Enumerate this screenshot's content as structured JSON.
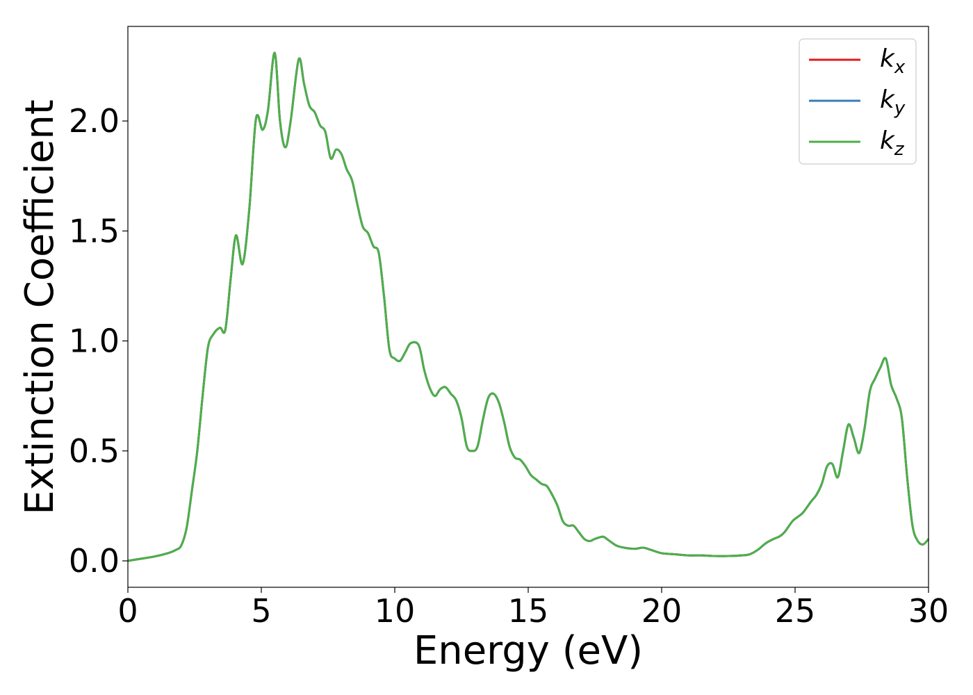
{
  "chart_data": {
    "type": "line",
    "xlabel": "Energy (eV)",
    "ylabel": "Extinction Coefficient",
    "xlim": [
      0,
      30
    ],
    "ylim": [
      -0.12,
      2.43
    ],
    "xticks": [
      0,
      5,
      10,
      15,
      20,
      25,
      30
    ],
    "xtick_labels": [
      "0",
      "5",
      "10",
      "15",
      "20",
      "25",
      "30"
    ],
    "yticks": [
      0.0,
      0.5,
      1.0,
      1.5,
      2.0
    ],
    "ytick_labels": [
      "0.0",
      "0.5",
      "1.0",
      "1.5",
      "2.0"
    ],
    "grid": false,
    "legend_position": "top-right",
    "x": [
      0,
      0.5,
      1.0,
      1.5,
      1.8,
      2.0,
      2.2,
      2.4,
      2.6,
      2.8,
      3.0,
      3.2,
      3.45,
      3.65,
      3.85,
      4.05,
      4.3,
      4.55,
      4.8,
      5.05,
      5.25,
      5.5,
      5.7,
      5.9,
      6.1,
      6.4,
      6.6,
      6.8,
      7.0,
      7.2,
      7.4,
      7.6,
      7.8,
      8.0,
      8.2,
      8.4,
      8.6,
      8.8,
      9.0,
      9.2,
      9.4,
      9.6,
      9.8,
      10.0,
      10.2,
      10.4,
      10.6,
      10.9,
      11.1,
      11.3,
      11.5,
      11.7,
      11.9,
      12.1,
      12.3,
      12.5,
      12.7,
      12.9,
      13.1,
      13.3,
      13.5,
      13.7,
      13.9,
      14.1,
      14.3,
      14.5,
      14.7,
      14.9,
      15.1,
      15.3,
      15.5,
      15.7,
      15.9,
      16.1,
      16.3,
      16.5,
      16.7,
      16.9,
      17.1,
      17.3,
      17.5,
      17.8,
      18.0,
      18.3,
      18.6,
      19.0,
      19.3,
      19.6,
      20.0,
      20.5,
      21.0,
      21.5,
      22.0,
      22.5,
      23.0,
      23.3,
      23.6,
      23.9,
      24.2,
      24.4,
      24.6,
      24.9,
      25.1,
      25.3,
      25.6,
      25.8,
      26.0,
      26.2,
      26.4,
      26.6,
      26.8,
      27.0,
      27.2,
      27.4,
      27.6,
      27.8,
      28.0,
      28.2,
      28.4,
      28.6,
      28.8,
      29.0,
      29.2,
      29.4,
      29.6,
      29.8,
      30.0
    ],
    "series": [
      {
        "name": "k_x",
        "color": "#e41a1c",
        "values": [
          0.0,
          0.01,
          0.02,
          0.035,
          0.05,
          0.07,
          0.15,
          0.32,
          0.5,
          0.75,
          0.97,
          1.03,
          1.06,
          1.05,
          1.28,
          1.48,
          1.35,
          1.6,
          2.01,
          1.96,
          2.05,
          2.31,
          2.0,
          1.88,
          2.0,
          2.28,
          2.17,
          2.07,
          2.04,
          1.98,
          1.95,
          1.83,
          1.87,
          1.85,
          1.78,
          1.73,
          1.62,
          1.52,
          1.49,
          1.43,
          1.4,
          1.2,
          0.96,
          0.92,
          0.91,
          0.95,
          0.99,
          0.98,
          0.87,
          0.79,
          0.75,
          0.78,
          0.79,
          0.76,
          0.73,
          0.65,
          0.52,
          0.5,
          0.52,
          0.64,
          0.74,
          0.76,
          0.72,
          0.63,
          0.52,
          0.47,
          0.46,
          0.43,
          0.39,
          0.37,
          0.35,
          0.34,
          0.3,
          0.25,
          0.18,
          0.16,
          0.16,
          0.13,
          0.1,
          0.09,
          0.1,
          0.11,
          0.095,
          0.07,
          0.06,
          0.055,
          0.06,
          0.05,
          0.035,
          0.03,
          0.025,
          0.025,
          0.022,
          0.022,
          0.025,
          0.03,
          0.05,
          0.08,
          0.1,
          0.11,
          0.13,
          0.18,
          0.2,
          0.22,
          0.27,
          0.3,
          0.35,
          0.43,
          0.44,
          0.38,
          0.5,
          0.62,
          0.56,
          0.49,
          0.6,
          0.77,
          0.83,
          0.88,
          0.92,
          0.8,
          0.74,
          0.65,
          0.38,
          0.16,
          0.09,
          0.075,
          0.1
        ]
      },
      {
        "name": "k_y",
        "color": "#377eb8",
        "values": [
          0.0,
          0.01,
          0.02,
          0.035,
          0.05,
          0.07,
          0.15,
          0.32,
          0.5,
          0.75,
          0.97,
          1.03,
          1.06,
          1.05,
          1.28,
          1.48,
          1.35,
          1.6,
          2.01,
          1.96,
          2.05,
          2.31,
          2.0,
          1.88,
          2.0,
          2.28,
          2.17,
          2.07,
          2.04,
          1.98,
          1.95,
          1.83,
          1.87,
          1.85,
          1.78,
          1.73,
          1.62,
          1.52,
          1.49,
          1.43,
          1.4,
          1.2,
          0.96,
          0.92,
          0.91,
          0.95,
          0.99,
          0.98,
          0.87,
          0.79,
          0.75,
          0.78,
          0.79,
          0.76,
          0.73,
          0.65,
          0.52,
          0.5,
          0.52,
          0.64,
          0.74,
          0.76,
          0.72,
          0.63,
          0.52,
          0.47,
          0.46,
          0.43,
          0.39,
          0.37,
          0.35,
          0.34,
          0.3,
          0.25,
          0.18,
          0.16,
          0.16,
          0.13,
          0.1,
          0.09,
          0.1,
          0.11,
          0.095,
          0.07,
          0.06,
          0.055,
          0.06,
          0.05,
          0.035,
          0.03,
          0.025,
          0.025,
          0.022,
          0.022,
          0.025,
          0.03,
          0.05,
          0.08,
          0.1,
          0.11,
          0.13,
          0.18,
          0.2,
          0.22,
          0.27,
          0.3,
          0.35,
          0.43,
          0.44,
          0.38,
          0.5,
          0.62,
          0.56,
          0.49,
          0.6,
          0.77,
          0.83,
          0.88,
          0.92,
          0.8,
          0.74,
          0.65,
          0.38,
          0.16,
          0.09,
          0.075,
          0.1
        ]
      },
      {
        "name": "k_z",
        "color": "#4daf4a",
        "values": [
          0.0,
          0.01,
          0.02,
          0.035,
          0.05,
          0.07,
          0.15,
          0.32,
          0.5,
          0.75,
          0.97,
          1.03,
          1.06,
          1.05,
          1.28,
          1.48,
          1.35,
          1.6,
          2.01,
          1.96,
          2.05,
          2.31,
          2.0,
          1.88,
          2.0,
          2.28,
          2.17,
          2.07,
          2.04,
          1.98,
          1.95,
          1.83,
          1.87,
          1.85,
          1.78,
          1.73,
          1.62,
          1.52,
          1.49,
          1.43,
          1.4,
          1.2,
          0.96,
          0.92,
          0.91,
          0.95,
          0.99,
          0.98,
          0.87,
          0.79,
          0.75,
          0.78,
          0.79,
          0.76,
          0.73,
          0.65,
          0.52,
          0.5,
          0.52,
          0.64,
          0.74,
          0.76,
          0.72,
          0.63,
          0.52,
          0.47,
          0.46,
          0.43,
          0.39,
          0.37,
          0.35,
          0.34,
          0.3,
          0.25,
          0.18,
          0.16,
          0.16,
          0.13,
          0.1,
          0.09,
          0.1,
          0.11,
          0.095,
          0.07,
          0.06,
          0.055,
          0.06,
          0.05,
          0.035,
          0.03,
          0.025,
          0.025,
          0.022,
          0.022,
          0.025,
          0.03,
          0.05,
          0.08,
          0.1,
          0.11,
          0.13,
          0.18,
          0.2,
          0.22,
          0.27,
          0.3,
          0.35,
          0.43,
          0.44,
          0.38,
          0.5,
          0.62,
          0.56,
          0.49,
          0.6,
          0.77,
          0.83,
          0.88,
          0.92,
          0.8,
          0.74,
          0.65,
          0.38,
          0.16,
          0.09,
          0.075,
          0.1
        ]
      }
    ],
    "legend": [
      {
        "base": "k",
        "sub": "x",
        "color": "#e41a1c"
      },
      {
        "base": "k",
        "sub": "y",
        "color": "#377eb8"
      },
      {
        "base": "k",
        "sub": "z",
        "color": "#4daf4a"
      }
    ]
  }
}
